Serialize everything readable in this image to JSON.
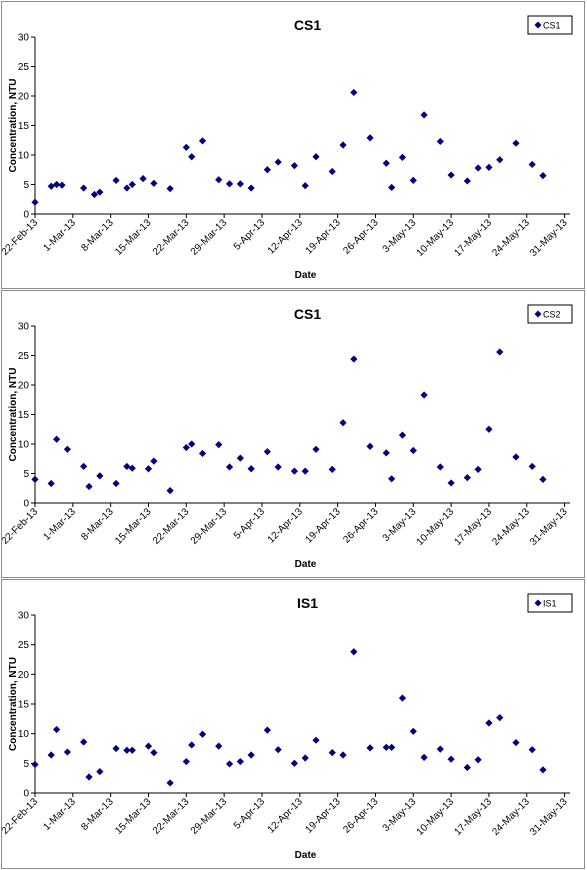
{
  "charts": [
    {
      "title": "CS1",
      "legend": "CS1",
      "xlabel": "Date",
      "ylabel": "Concentration, NTU"
    },
    {
      "title": "CS1",
      "legend": "CS2",
      "xlabel": "Date",
      "ylabel": "Concentration, NTU"
    },
    {
      "title": "IS1",
      "legend": "IS1",
      "xlabel": "Date",
      "ylabel": "Concentration, NTU"
    }
  ],
  "chart_data": [
    {
      "type": "scatter",
      "title": "CS1",
      "xlabel": "Date",
      "ylabel": "Concentration, NTU",
      "ylim": [
        0,
        30
      ],
      "yticks": [
        0,
        5,
        10,
        15,
        20,
        25,
        30
      ],
      "xlim": [
        "22-Feb-13",
        "1-Jun-13"
      ],
      "xticks": [
        "22-Feb-13",
        "1-Mar-13",
        "8-Mar-13",
        "15-Mar-13",
        "22-Mar-13",
        "29-Mar-13",
        "5-Apr-13",
        "12-Apr-13",
        "19-Apr-13",
        "26-Apr-13",
        "3-May-13",
        "10-May-13",
        "17-May-13",
        "24-May-13",
        "31-May-13"
      ],
      "grid": false,
      "legend_position": "top-right",
      "color": "#00007f",
      "series": [
        {
          "name": "CS1",
          "points": [
            [
              "2013-02-22",
              2.0
            ],
            [
              "2013-02-25",
              4.7
            ],
            [
              "2013-02-26",
              5.0
            ],
            [
              "2013-02-27",
              4.9
            ],
            [
              "2013-03-03",
              4.4
            ],
            [
              "2013-03-05",
              3.3
            ],
            [
              "2013-03-06",
              3.7
            ],
            [
              "2013-03-09",
              5.7
            ],
            [
              "2013-03-11",
              4.4
            ],
            [
              "2013-03-12",
              5.0
            ],
            [
              "2013-03-14",
              6.0
            ],
            [
              "2013-03-16",
              5.2
            ],
            [
              "2013-03-19",
              4.3
            ],
            [
              "2013-03-22",
              11.3
            ],
            [
              "2013-03-23",
              9.7
            ],
            [
              "2013-03-25",
              12.4
            ],
            [
              "2013-03-28",
              5.8
            ],
            [
              "2013-03-30",
              5.1
            ],
            [
              "2013-04-01",
              5.1
            ],
            [
              "2013-04-03",
              4.4
            ],
            [
              "2013-04-06",
              7.5
            ],
            [
              "2013-04-08",
              8.8
            ],
            [
              "2013-04-11",
              8.2
            ],
            [
              "2013-04-13",
              4.8
            ],
            [
              "2013-04-15",
              9.7
            ],
            [
              "2013-04-18",
              7.2
            ],
            [
              "2013-04-20",
              11.7
            ],
            [
              "2013-04-22",
              20.6
            ],
            [
              "2013-04-25",
              12.9
            ],
            [
              "2013-04-28",
              8.6
            ],
            [
              "2013-04-29",
              4.5
            ],
            [
              "2013-05-01",
              9.6
            ],
            [
              "2013-05-03",
              5.7
            ],
            [
              "2013-05-05",
              16.8
            ],
            [
              "2013-05-08",
              12.3
            ],
            [
              "2013-05-10",
              6.6
            ],
            [
              "2013-05-13",
              5.6
            ],
            [
              "2013-05-15",
              7.8
            ],
            [
              "2013-05-17",
              7.9
            ],
            [
              "2013-05-19",
              9.2
            ],
            [
              "2013-05-22",
              12.0
            ],
            [
              "2013-05-25",
              8.4
            ],
            [
              "2013-05-27",
              6.5
            ]
          ]
        }
      ]
    },
    {
      "type": "scatter",
      "title": "CS1",
      "xlabel": "Date",
      "ylabel": "Concentration, NTU",
      "ylim": [
        0,
        30
      ],
      "yticks": [
        0,
        5,
        10,
        15,
        20,
        25,
        30
      ],
      "xlim": [
        "22-Feb-13",
        "1-Jun-13"
      ],
      "xticks": [
        "22-Feb-13",
        "1-Mar-13",
        "8-Mar-13",
        "15-Mar-13",
        "22-Mar-13",
        "29-Mar-13",
        "5-Apr-13",
        "12-Apr-13",
        "19-Apr-13",
        "26-Apr-13",
        "3-May-13",
        "10-May-13",
        "17-May-13",
        "24-May-13",
        "31-May-13"
      ],
      "grid": false,
      "legend_position": "top-right",
      "color": "#00007f",
      "series": [
        {
          "name": "CS2",
          "points": [
            [
              "2013-02-22",
              4.0
            ],
            [
              "2013-02-25",
              3.3
            ],
            [
              "2013-02-26",
              10.8
            ],
            [
              "2013-02-28",
              9.1
            ],
            [
              "2013-03-03",
              6.2
            ],
            [
              "2013-03-04",
              2.8
            ],
            [
              "2013-03-06",
              4.6
            ],
            [
              "2013-03-09",
              3.3
            ],
            [
              "2013-03-11",
              6.2
            ],
            [
              "2013-03-12",
              5.9
            ],
            [
              "2013-03-15",
              5.8
            ],
            [
              "2013-03-16",
              7.1
            ],
            [
              "2013-03-19",
              2.1
            ],
            [
              "2013-03-22",
              9.4
            ],
            [
              "2013-03-23",
              10.0
            ],
            [
              "2013-03-25",
              8.4
            ],
            [
              "2013-03-28",
              9.9
            ],
            [
              "2013-03-30",
              6.1
            ],
            [
              "2013-04-01",
              7.6
            ],
            [
              "2013-04-03",
              5.8
            ],
            [
              "2013-04-06",
              8.7
            ],
            [
              "2013-04-08",
              6.1
            ],
            [
              "2013-04-11",
              5.4
            ],
            [
              "2013-04-13",
              5.4
            ],
            [
              "2013-04-15",
              9.1
            ],
            [
              "2013-04-18",
              5.7
            ],
            [
              "2013-04-20",
              13.6
            ],
            [
              "2013-04-22",
              24.4
            ],
            [
              "2013-04-25",
              9.6
            ],
            [
              "2013-04-28",
              8.5
            ],
            [
              "2013-04-29",
              4.1
            ],
            [
              "2013-05-01",
              11.5
            ],
            [
              "2013-05-03",
              8.9
            ],
            [
              "2013-05-05",
              18.3
            ],
            [
              "2013-05-08",
              6.1
            ],
            [
              "2013-05-10",
              3.4
            ],
            [
              "2013-05-13",
              4.3
            ],
            [
              "2013-05-15",
              5.7
            ],
            [
              "2013-05-17",
              12.5
            ],
            [
              "2013-05-19",
              25.6
            ],
            [
              "2013-05-22",
              7.8
            ],
            [
              "2013-05-25",
              6.2
            ],
            [
              "2013-05-27",
              4.0
            ]
          ]
        }
      ]
    },
    {
      "type": "scatter",
      "title": "IS1",
      "xlabel": "Date",
      "ylabel": "Concentration, NTU",
      "ylim": [
        0,
        30
      ],
      "yticks": [
        0,
        5,
        10,
        15,
        20,
        25,
        30
      ],
      "xlim": [
        "22-Feb-13",
        "1-Jun-13"
      ],
      "xticks": [
        "22-Feb-13",
        "1-Mar-13",
        "8-Mar-13",
        "15-Mar-13",
        "22-Mar-13",
        "29-Mar-13",
        "5-Apr-13",
        "12-Apr-13",
        "19-Apr-13",
        "26-Apr-13",
        "3-May-13",
        "10-May-13",
        "17-May-13",
        "24-May-13",
        "31-May-13"
      ],
      "grid": false,
      "legend_position": "top-right",
      "color": "#00007f",
      "series": [
        {
          "name": "IS1",
          "points": [
            [
              "2013-02-22",
              4.8
            ],
            [
              "2013-02-25",
              6.4
            ],
            [
              "2013-02-26",
              10.7
            ],
            [
              "2013-02-28",
              6.9
            ],
            [
              "2013-03-03",
              8.6
            ],
            [
              "2013-03-04",
              2.7
            ],
            [
              "2013-03-06",
              3.6
            ],
            [
              "2013-03-09",
              7.5
            ],
            [
              "2013-03-11",
              7.2
            ],
            [
              "2013-03-12",
              7.2
            ],
            [
              "2013-03-15",
              7.9
            ],
            [
              "2013-03-16",
              6.8
            ],
            [
              "2013-03-19",
              1.7
            ],
            [
              "2013-03-22",
              5.3
            ],
            [
              "2013-03-23",
              8.1
            ],
            [
              "2013-03-25",
              9.9
            ],
            [
              "2013-03-28",
              7.9
            ],
            [
              "2013-03-30",
              4.9
            ],
            [
              "2013-04-01",
              5.3
            ],
            [
              "2013-04-03",
              6.4
            ],
            [
              "2013-04-06",
              10.6
            ],
            [
              "2013-04-08",
              7.3
            ],
            [
              "2013-04-11",
              5.0
            ],
            [
              "2013-04-13",
              5.9
            ],
            [
              "2013-04-15",
              8.9
            ],
            [
              "2013-04-18",
              6.8
            ],
            [
              "2013-04-20",
              6.4
            ],
            [
              "2013-04-22",
              23.8
            ],
            [
              "2013-04-25",
              7.6
            ],
            [
              "2013-04-28",
              7.7
            ],
            [
              "2013-04-29",
              7.7
            ],
            [
              "2013-05-01",
              16.0
            ],
            [
              "2013-05-03",
              10.4
            ],
            [
              "2013-05-05",
              6.0
            ],
            [
              "2013-05-08",
              7.4
            ],
            [
              "2013-05-10",
              5.7
            ],
            [
              "2013-05-13",
              4.3
            ],
            [
              "2013-05-15",
              5.6
            ],
            [
              "2013-05-17",
              11.8
            ],
            [
              "2013-05-19",
              12.7
            ],
            [
              "2013-05-22",
              8.5
            ],
            [
              "2013-05-25",
              7.3
            ],
            [
              "2013-05-27",
              3.9
            ]
          ]
        }
      ]
    }
  ]
}
